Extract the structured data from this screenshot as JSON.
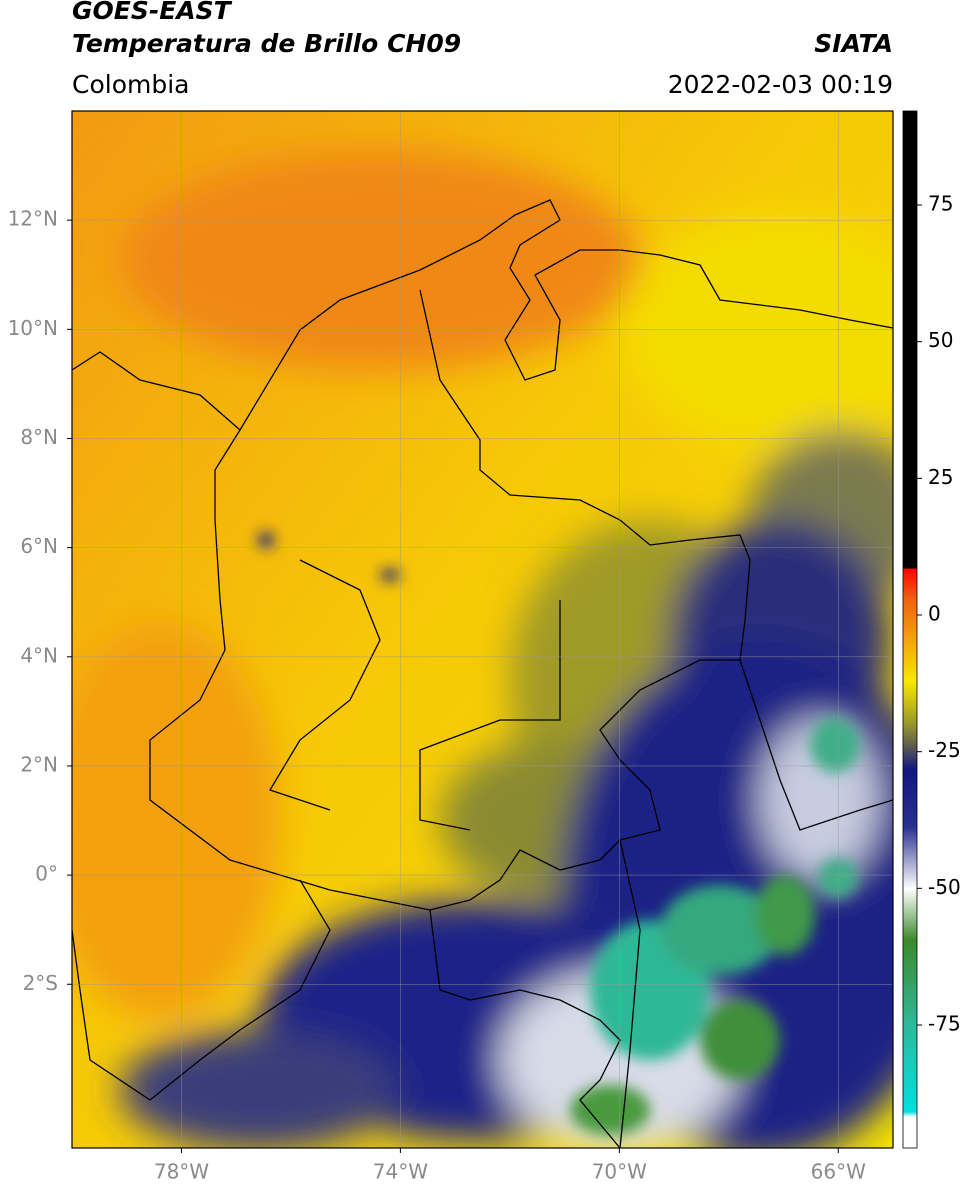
{
  "header": {
    "title": "GOES-EAST",
    "subtitle": "Temperatura de Brillo CH09",
    "source": "SIATA",
    "region": "Colombia",
    "datetime": "2022-02-03 00:19"
  },
  "map": {
    "lon_range": [
      -80,
      -65
    ],
    "lat_range": [
      -5,
      14
    ],
    "grid": true,
    "lon_ticks": [
      {
        "value": -78,
        "label": "78°W"
      },
      {
        "value": -74,
        "label": "74°W"
      },
      {
        "value": -70,
        "label": "70°W"
      },
      {
        "value": -66,
        "label": "66°W"
      }
    ],
    "lat_ticks": [
      {
        "value": 12,
        "label": "12°N"
      },
      {
        "value": 10,
        "label": "10°N"
      },
      {
        "value": 8,
        "label": "8°N"
      },
      {
        "value": 6,
        "label": "6°N"
      },
      {
        "value": 4,
        "label": "4°N"
      },
      {
        "value": 2,
        "label": "2°N"
      },
      {
        "value": 0,
        "label": "0°"
      },
      {
        "value": -2,
        "label": "2°S"
      }
    ]
  },
  "colorbar": {
    "range": [
      -97.5,
      92.2
    ],
    "ticks": [
      75,
      50,
      25,
      0,
      -25,
      -50,
      -75
    ]
  }
}
